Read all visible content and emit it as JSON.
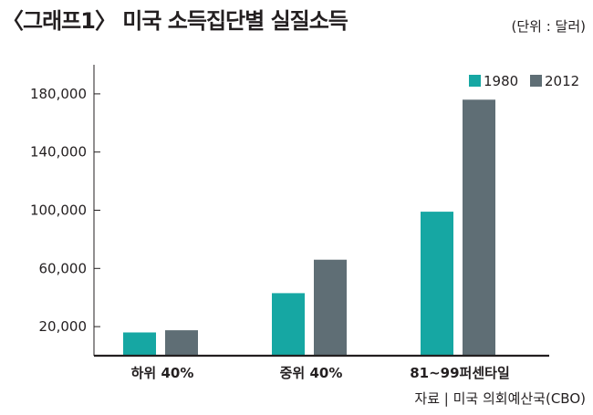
{
  "header": {
    "title": "〈그래프1〉 미국 소득집단별 실질소득",
    "unit_note": "(단위 : 달러)"
  },
  "footer": {
    "source": "자료 | 미국 의회예산국(CBO)"
  },
  "chart_data": {
    "type": "bar",
    "title": "〈그래프1〉 미국 소득집단별 실질소득",
    "categories": [
      "하위 40%",
      "중위 40%",
      "81~99퍼센타일"
    ],
    "series": [
      {
        "name": "1980",
        "color": "#16a7a3",
        "values": [
          16000,
          43000,
          99000
        ]
      },
      {
        "name": "2012",
        "color": "#5f6e75",
        "values": [
          17500,
          66000,
          176000
        ]
      }
    ],
    "y_ticks": [
      20000,
      60000,
      100000,
      140000,
      180000
    ],
    "y_tick_labels": [
      "20,000",
      "60,000",
      "100,000",
      "140,000",
      "180,000"
    ],
    "ylim": [
      0,
      200000
    ],
    "legend_position": "top-right",
    "grid": false
  }
}
